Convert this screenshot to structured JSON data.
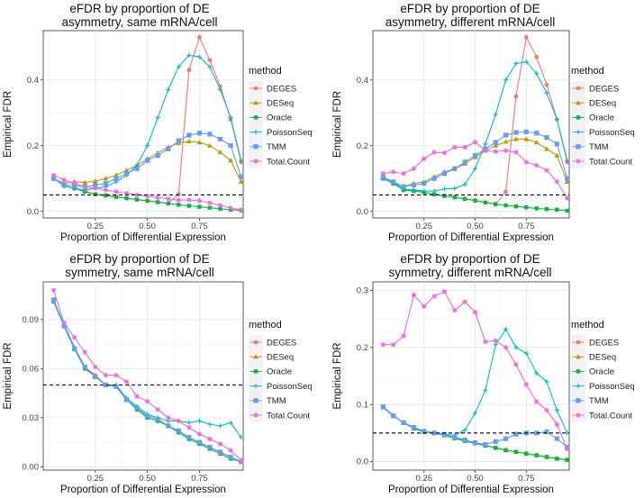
{
  "legend": {
    "title": "method",
    "entries": [
      "DEGES",
      "DESeq",
      "Oracle",
      "PoissonSeq",
      "TMM",
      "Total.Count"
    ]
  },
  "colors": {
    "DEGES": "#F8766D",
    "DESeq": "#B79F00",
    "Oracle": "#00BA38",
    "PoissonSeq": "#00BFC4",
    "TMM": "#619CFF",
    "Total.Count": "#F564E3"
  },
  "markers": {
    "DEGES": "circle",
    "DESeq": "triangle",
    "Oracle": "square",
    "PoissonSeq": "plus",
    "TMM": "squarebox",
    "Total.Count": "star"
  },
  "chart_data": [
    {
      "type": "line",
      "title": "eFDR by proportion of DE\nasymmetry, same mRNA/cell",
      "xlabel": "Proportion of Differential Expression",
      "ylabel": "Empirical FDR",
      "xlim": [
        0.0,
        0.96
      ],
      "ylim": [
        -0.02,
        0.55
      ],
      "xticks": [
        0.25,
        0.5,
        0.75
      ],
      "xtick_labels": [
        "0.25",
        "0.50",
        "0.75"
      ],
      "yticks": [
        0.0,
        0.2,
        0.4
      ],
      "ytick_labels": [
        "0.0",
        "0.2",
        "0.4"
      ],
      "hline": 0.05,
      "x": [
        0.05,
        0.1,
        0.15,
        0.2,
        0.25,
        0.3,
        0.35,
        0.4,
        0.45,
        0.5,
        0.55,
        0.6,
        0.65,
        0.7,
        0.75,
        0.8,
        0.85,
        0.9,
        0.95
      ],
      "series": [
        {
          "name": "DEGES",
          "values": [
            0.1,
            0.078,
            0.07,
            0.06,
            0.052,
            0.048,
            0.044,
            0.04,
            0.036,
            0.032,
            0.028,
            0.024,
            0.052,
            0.43,
            0.53,
            0.46,
            0.38,
            0.28,
            0.15
          ]
        },
        {
          "name": "DESeq",
          "values": [
            0.1,
            0.085,
            0.09,
            0.088,
            0.092,
            0.1,
            0.11,
            0.125,
            0.14,
            0.16,
            0.178,
            0.195,
            0.208,
            0.213,
            0.21,
            0.2,
            0.18,
            0.155,
            0.09
          ]
        },
        {
          "name": "Oracle",
          "values": [
            0.1,
            0.078,
            0.07,
            0.06,
            0.052,
            0.048,
            0.044,
            0.04,
            0.036,
            0.032,
            0.028,
            0.024,
            0.02,
            0.017,
            0.014,
            0.011,
            0.008,
            0.005,
            0.003
          ]
        },
        {
          "name": "PoissonSeq",
          "values": [
            0.1,
            0.078,
            0.07,
            0.065,
            0.07,
            0.075,
            0.09,
            0.11,
            0.14,
            0.2,
            0.285,
            0.37,
            0.44,
            0.475,
            0.47,
            0.44,
            0.37,
            0.285,
            0.155
          ]
        },
        {
          "name": "TMM",
          "values": [
            0.1,
            0.08,
            0.078,
            0.075,
            0.08,
            0.085,
            0.1,
            0.115,
            0.13,
            0.155,
            0.17,
            0.19,
            0.215,
            0.232,
            0.238,
            0.235,
            0.22,
            0.2,
            0.105
          ]
        },
        {
          "name": "Total.Count",
          "values": [
            0.11,
            0.095,
            0.085,
            0.075,
            0.07,
            0.065,
            0.06,
            0.055,
            0.05,
            0.046,
            0.042,
            0.038,
            0.034,
            0.035,
            0.032,
            0.026,
            0.018,
            0.01,
            0.005
          ]
        }
      ]
    },
    {
      "type": "line",
      "title": "eFDR by proportion of DE\nasymmetry, different mRNA/cell",
      "xlabel": "Proportion of Differential Expression",
      "ylabel": "Empirical FDR",
      "xlim": [
        0.0,
        0.96
      ],
      "ylim": [
        -0.02,
        0.55
      ],
      "xticks": [
        0.25,
        0.5,
        0.75
      ],
      "xtick_labels": [
        "0.25",
        "0.50",
        "0.75"
      ],
      "yticks": [
        0.0,
        0.2,
        0.4
      ],
      "ytick_labels": [
        "0.0",
        "0.2",
        "0.4"
      ],
      "hline": 0.05,
      "x": [
        0.05,
        0.1,
        0.15,
        0.2,
        0.25,
        0.3,
        0.35,
        0.4,
        0.45,
        0.5,
        0.55,
        0.6,
        0.65,
        0.7,
        0.75,
        0.8,
        0.85,
        0.9,
        0.95
      ],
      "series": [
        {
          "name": "DEGES",
          "values": [
            0.1,
            0.085,
            0.065,
            0.062,
            0.058,
            0.052,
            0.047,
            0.043,
            0.038,
            0.033,
            0.027,
            0.022,
            0.06,
            0.35,
            0.53,
            0.47,
            0.385,
            0.28,
            0.15
          ]
        },
        {
          "name": "DESeq",
          "values": [
            0.1,
            0.088,
            0.075,
            0.085,
            0.09,
            0.105,
            0.12,
            0.13,
            0.145,
            0.165,
            0.185,
            0.2,
            0.212,
            0.22,
            0.22,
            0.21,
            0.19,
            0.17,
            0.09
          ]
        },
        {
          "name": "Oracle",
          "values": [
            0.1,
            0.085,
            0.065,
            0.062,
            0.058,
            0.052,
            0.047,
            0.043,
            0.038,
            0.033,
            0.027,
            0.022,
            0.018,
            0.015,
            0.012,
            0.009,
            0.007,
            0.005,
            0.002
          ]
        },
        {
          "name": "PoissonSeq",
          "values": [
            0.1,
            0.088,
            0.068,
            0.065,
            0.062,
            0.062,
            0.068,
            0.07,
            0.082,
            0.13,
            0.205,
            0.295,
            0.4,
            0.45,
            0.455,
            0.42,
            0.36,
            0.28,
            0.155
          ]
        },
        {
          "name": "TMM",
          "values": [
            0.105,
            0.09,
            0.075,
            0.08,
            0.085,
            0.1,
            0.115,
            0.13,
            0.15,
            0.17,
            0.19,
            0.21,
            0.232,
            0.24,
            0.242,
            0.238,
            0.225,
            0.205,
            0.1
          ]
        },
        {
          "name": "Total.Count",
          "values": [
            0.115,
            0.12,
            0.115,
            0.13,
            0.16,
            0.18,
            0.178,
            0.195,
            0.195,
            0.21,
            0.185,
            0.182,
            0.185,
            0.18,
            0.15,
            0.14,
            0.125,
            0.09,
            0.04
          ]
        }
      ]
    },
    {
      "type": "line",
      "title": "eFDR by proportion of DE\nsymmetry, same mRNA/cell",
      "xlabel": "Proportion of Differential Expression",
      "ylabel": "Empirical FDR",
      "xlim": [
        0.0,
        0.96
      ],
      "ylim": [
        -0.002,
        0.113
      ],
      "xticks": [
        0.25,
        0.5,
        0.75
      ],
      "xtick_labels": [
        "0.25",
        "0.50",
        "0.75"
      ],
      "yticks": [
        0.0,
        0.03,
        0.06,
        0.09
      ],
      "ytick_labels": [
        "0.00",
        "0.03",
        "0.06",
        "0.09"
      ],
      "hline": 0.05,
      "x": [
        0.05,
        0.1,
        0.15,
        0.2,
        0.25,
        0.3,
        0.35,
        0.4,
        0.45,
        0.5,
        0.55,
        0.6,
        0.65,
        0.7,
        0.75,
        0.8,
        0.85,
        0.9,
        0.95
      ],
      "series": [
        {
          "name": "DEGES",
          "values": [
            0.101,
            0.086,
            0.072,
            0.061,
            0.056,
            0.05,
            0.049,
            0.041,
            0.036,
            0.031,
            0.029,
            0.025,
            0.022,
            0.018,
            0.015,
            0.012,
            0.009,
            0.006,
            0.003
          ]
        },
        {
          "name": "DESeq",
          "values": [
            0.102,
            0.086,
            0.072,
            0.061,
            0.055,
            0.05,
            0.049,
            0.041,
            0.036,
            0.031,
            0.029,
            0.025,
            0.022,
            0.018,
            0.015,
            0.012,
            0.009,
            0.006,
            0.003
          ]
        },
        {
          "name": "Oracle",
          "values": [
            0.101,
            0.086,
            0.072,
            0.06,
            0.055,
            0.05,
            0.049,
            0.041,
            0.035,
            0.03,
            0.028,
            0.025,
            0.021,
            0.017,
            0.014,
            0.011,
            0.008,
            0.005,
            0.003
          ]
        },
        {
          "name": "PoissonSeq",
          "values": [
            0.102,
            0.087,
            0.073,
            0.061,
            0.055,
            0.05,
            0.05,
            0.042,
            0.037,
            0.032,
            0.03,
            0.028,
            0.028,
            0.027,
            0.028,
            0.026,
            0.025,
            0.027,
            0.018
          ]
        },
        {
          "name": "TMM",
          "values": [
            0.102,
            0.086,
            0.072,
            0.061,
            0.055,
            0.05,
            0.049,
            0.041,
            0.036,
            0.031,
            0.029,
            0.025,
            0.022,
            0.018,
            0.015,
            0.012,
            0.009,
            0.006,
            0.003
          ]
        },
        {
          "name": "Total.Count",
          "values": [
            0.108,
            0.088,
            0.079,
            0.07,
            0.061,
            0.056,
            0.056,
            0.052,
            0.043,
            0.04,
            0.035,
            0.03,
            0.028,
            0.024,
            0.02,
            0.017,
            0.014,
            0.01,
            0.004
          ]
        }
      ]
    },
    {
      "type": "line",
      "title": "eFDR by proportion of DE\nsymmetry, different mRNA/cell",
      "xlabel": "Proportion of Differential Expression",
      "ylabel": "Empirical FDR",
      "xlim": [
        0.0,
        0.96
      ],
      "ylim": [
        -0.015,
        0.315
      ],
      "xticks": [
        0.25,
        0.5,
        0.75
      ],
      "xtick_labels": [
        "0.25",
        "0.50",
        "0.75"
      ],
      "yticks": [
        0.0,
        0.1,
        0.2,
        0.3
      ],
      "ytick_labels": [
        "0.0",
        "0.1",
        "0.2",
        "0.3"
      ],
      "hline": 0.05,
      "x": [
        0.05,
        0.1,
        0.15,
        0.2,
        0.25,
        0.3,
        0.35,
        0.4,
        0.45,
        0.5,
        0.55,
        0.6,
        0.65,
        0.7,
        0.75,
        0.8,
        0.85,
        0.9,
        0.95
      ],
      "series": [
        {
          "name": "DEGES",
          "values": [
            0.095,
            0.08,
            0.068,
            0.058,
            0.052,
            0.05,
            0.046,
            0.041,
            0.036,
            0.032,
            0.028,
            0.024,
            0.02,
            0.017,
            0.014,
            0.011,
            0.008,
            0.005,
            0.003
          ]
        },
        {
          "name": "DESeq",
          "values": [
            0.095,
            0.08,
            0.068,
            0.058,
            0.052,
            0.05,
            0.046,
            0.041,
            0.036,
            0.032,
            0.028,
            0.024,
            0.02,
            0.017,
            0.014,
            0.011,
            0.008,
            0.005,
            0.003
          ]
        },
        {
          "name": "Oracle",
          "values": [
            0.095,
            0.08,
            0.068,
            0.058,
            0.052,
            0.05,
            0.046,
            0.041,
            0.036,
            0.032,
            0.028,
            0.024,
            0.02,
            0.017,
            0.014,
            0.011,
            0.008,
            0.005,
            0.003
          ]
        },
        {
          "name": "PoissonSeq",
          "values": [
            0.096,
            0.081,
            0.068,
            0.06,
            0.053,
            0.05,
            0.048,
            0.046,
            0.055,
            0.085,
            0.125,
            0.205,
            0.232,
            0.2,
            0.19,
            0.155,
            0.14,
            0.09,
            0.05
          ]
        },
        {
          "name": "TMM",
          "values": [
            0.096,
            0.08,
            0.068,
            0.06,
            0.053,
            0.05,
            0.047,
            0.043,
            0.038,
            0.033,
            0.03,
            0.035,
            0.04,
            0.048,
            0.05,
            0.05,
            0.052,
            0.04,
            0.025
          ]
        },
        {
          "name": "Total.Count",
          "values": [
            0.205,
            0.205,
            0.22,
            0.292,
            0.272,
            0.29,
            0.298,
            0.265,
            0.28,
            0.262,
            0.21,
            0.212,
            0.2,
            0.17,
            0.135,
            0.105,
            0.09,
            0.065,
            0.022
          ]
        }
      ]
    }
  ]
}
